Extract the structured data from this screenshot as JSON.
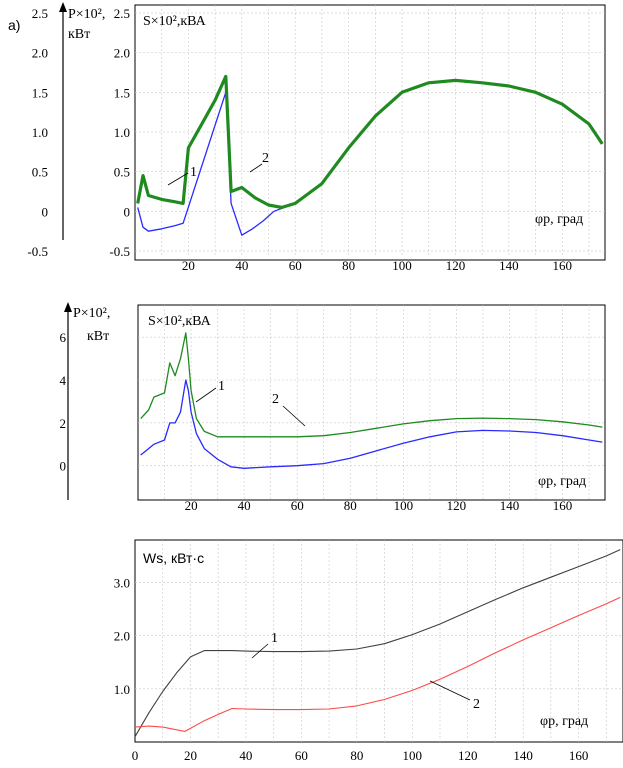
{
  "panel_label": "a)",
  "colors": {
    "series1_blue": "#2a2aff",
    "series2_green": "#1f8a1f",
    "series1_dark": "#404040",
    "series2_red": "#ff4a4a",
    "grid": "#c8c8c8"
  },
  "chart_data": [
    {
      "type": "line",
      "outer_axis_label_line1": "P×10², ",
      "outer_axis_label_line2": "кВт",
      "ylabel": "S×10²,кВА",
      "xlabel": "φр, град",
      "outer_ticks": [
        "2.5",
        "2.0",
        "1.5",
        "1.0",
        "0.5",
        "0",
        "-0.5"
      ],
      "inner_ticks": [
        "2.5",
        "2.0",
        "1.5",
        "1.0",
        "0.5",
        "0",
        "-0.5"
      ],
      "x_ticks": [
        20,
        40,
        60,
        80,
        100,
        120,
        140,
        160
      ],
      "xlim": [
        0,
        176
      ],
      "ylim": [
        -0.55,
        2.6
      ],
      "grid": true,
      "series": [
        {
          "name": "1",
          "color": "#2a2aff",
          "x": [
            1,
            3,
            5,
            10,
            15,
            18,
            34,
            36,
            40,
            44,
            48,
            52,
            56
          ],
          "y": [
            0.05,
            -0.2,
            -0.25,
            -0.22,
            -0.18,
            -0.15,
            1.5,
            0.1,
            -0.3,
            -0.22,
            -0.12,
            0.0,
            0.05
          ]
        },
        {
          "name": "2",
          "color": "#1f8a1f",
          "x": [
            1,
            3,
            5,
            10,
            15,
            18,
            20,
            25,
            30,
            34,
            36,
            40,
            45,
            50,
            55,
            60,
            70,
            80,
            90,
            100,
            110,
            120,
            130,
            140,
            150,
            160,
            170,
            175
          ],
          "y": [
            0.1,
            0.45,
            0.2,
            0.15,
            0.12,
            0.1,
            0.8,
            1.1,
            1.4,
            1.7,
            0.25,
            0.3,
            0.17,
            0.08,
            0.05,
            0.1,
            0.35,
            0.8,
            1.2,
            1.5,
            1.62,
            1.65,
            1.62,
            1.58,
            1.5,
            1.35,
            1.1,
            0.85
          ]
        }
      ]
    },
    {
      "type": "line",
      "outer_axis_label_line1": "P×10², ",
      "outer_axis_label_line2": "кВт",
      "ylabel": "S×10²,кВА",
      "xlabel": "φр, град",
      "outer_ticks": [
        "6",
        "4",
        "2",
        "0"
      ],
      "x_ticks": [
        20,
        40,
        60,
        80,
        100,
        120,
        140,
        160
      ],
      "xlim": [
        0,
        176
      ],
      "ylim": [
        -1.6,
        7.5
      ],
      "grid": true,
      "series": [
        {
          "name": "1",
          "color": "#2a2aff",
          "x": [
            1,
            4,
            6,
            10,
            12,
            14,
            16,
            18,
            19,
            20,
            22,
            25,
            30,
            35,
            40,
            50,
            60,
            70,
            80,
            90,
            100,
            110,
            120,
            130,
            140,
            150,
            160,
            170,
            175
          ],
          "y": [
            0.5,
            0.8,
            1.0,
            1.2,
            2.0,
            2.0,
            2.5,
            4.0,
            3.5,
            2.5,
            1.5,
            0.8,
            0.3,
            -0.05,
            -0.12,
            -0.05,
            0.0,
            0.1,
            0.35,
            0.7,
            1.05,
            1.35,
            1.58,
            1.65,
            1.62,
            1.55,
            1.4,
            1.2,
            1.1
          ]
        },
        {
          "name": "2",
          "color": "#1f8a1f",
          "x": [
            1,
            4,
            6,
            10,
            12,
            14,
            16,
            18,
            19,
            20,
            22,
            25,
            30,
            40,
            50,
            60,
            70,
            80,
            90,
            100,
            110,
            120,
            130,
            140,
            150,
            160,
            170,
            175
          ],
          "y": [
            2.2,
            2.6,
            3.2,
            3.4,
            4.8,
            4.2,
            5.0,
            6.2,
            5.0,
            3.5,
            2.2,
            1.6,
            1.35,
            1.35,
            1.35,
            1.35,
            1.4,
            1.55,
            1.75,
            1.95,
            2.1,
            2.2,
            2.22,
            2.2,
            2.15,
            2.05,
            1.9,
            1.8
          ]
        }
      ]
    },
    {
      "type": "line",
      "ylabel": "Ws, кВт·с",
      "xlabel": "φр, град",
      "y_ticks": [
        "3.0",
        "2.0",
        "1.0"
      ],
      "x_ticks": [
        0,
        20,
        40,
        60,
        80,
        100,
        120,
        140,
        160
      ],
      "xlim": [
        0,
        176
      ],
      "ylim": [
        0,
        3.8
      ],
      "grid": true,
      "series": [
        {
          "name": "1",
          "color": "#404040",
          "x": [
            0,
            5,
            10,
            15,
            20,
            25,
            30,
            35,
            40,
            50,
            60,
            70,
            80,
            90,
            100,
            110,
            120,
            130,
            140,
            150,
            160,
            170,
            175
          ],
          "y": [
            0.1,
            0.55,
            0.95,
            1.3,
            1.6,
            1.72,
            1.72,
            1.72,
            1.71,
            1.7,
            1.7,
            1.71,
            1.75,
            1.85,
            2.02,
            2.22,
            2.45,
            2.68,
            2.9,
            3.1,
            3.3,
            3.5,
            3.62
          ]
        },
        {
          "name": "2",
          "color": "#ff4a4a",
          "x": [
            0,
            5,
            10,
            18,
            25,
            30,
            35,
            40,
            50,
            60,
            70,
            80,
            90,
            100,
            110,
            120,
            130,
            140,
            150,
            160,
            170,
            175
          ],
          "y": [
            0.28,
            0.3,
            0.28,
            0.2,
            0.4,
            0.52,
            0.63,
            0.62,
            0.61,
            0.61,
            0.62,
            0.68,
            0.8,
            0.97,
            1.18,
            1.42,
            1.68,
            1.92,
            2.15,
            2.38,
            2.6,
            2.72
          ]
        }
      ]
    }
  ]
}
